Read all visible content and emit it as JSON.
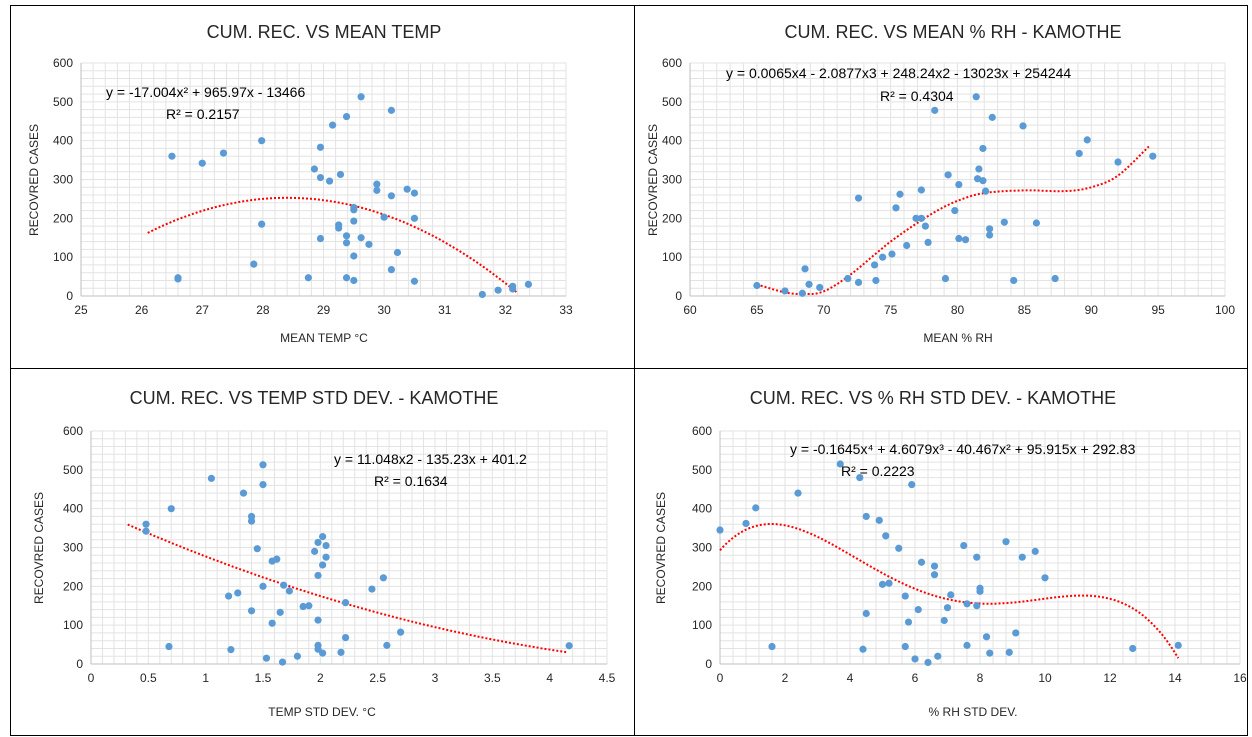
{
  "colors": {
    "point": "#5b9bd5",
    "trend": "#ff0000",
    "border": "#000000"
  },
  "chart_data": [
    {
      "type": "scatter",
      "title": "CUM. REC. VS MEAN TEMP",
      "xlabel": "MEAN TEMP °C",
      "ylabel": "RECOVRED  CASES",
      "xlim": [
        25,
        33
      ],
      "ylim": [
        0,
        600
      ],
      "xticks": [
        25,
        26,
        27,
        28,
        29,
        30,
        31,
        32,
        33
      ],
      "yticks": [
        0,
        100,
        200,
        300,
        400,
        500,
        600
      ],
      "grid": true,
      "trendline": {
        "type": "polynomial",
        "coefficients": [
          -13466,
          965.97,
          -17.004
        ],
        "x_range": [
          26.1,
          32.2
        ],
        "equation": "y = -17.004x² + 965.97x - 13466",
        "r2": "R² = 0.2157"
      },
      "points": [
        {
          "x": 26.5,
          "y": 360
        },
        {
          "x": 26.6,
          "y": 47
        },
        {
          "x": 26.6,
          "y": 44
        },
        {
          "x": 27.0,
          "y": 342
        },
        {
          "x": 27.35,
          "y": 368
        },
        {
          "x": 27.85,
          "y": 82
        },
        {
          "x": 27.98,
          "y": 400
        },
        {
          "x": 27.98,
          "y": 185
        },
        {
          "x": 28.75,
          "y": 47
        },
        {
          "x": 28.85,
          "y": 327
        },
        {
          "x": 28.95,
          "y": 383
        },
        {
          "x": 28.95,
          "y": 305
        },
        {
          "x": 28.95,
          "y": 148
        },
        {
          "x": 29.1,
          "y": 296
        },
        {
          "x": 29.15,
          "y": 440
        },
        {
          "x": 29.25,
          "y": 183
        },
        {
          "x": 29.25,
          "y": 175
        },
        {
          "x": 29.28,
          "y": 313
        },
        {
          "x": 29.38,
          "y": 462
        },
        {
          "x": 29.38,
          "y": 155
        },
        {
          "x": 29.38,
          "y": 137
        },
        {
          "x": 29.38,
          "y": 47
        },
        {
          "x": 29.5,
          "y": 228
        },
        {
          "x": 29.5,
          "y": 222
        },
        {
          "x": 29.5,
          "y": 193
        },
        {
          "x": 29.5,
          "y": 103
        },
        {
          "x": 29.5,
          "y": 40
        },
        {
          "x": 29.62,
          "y": 513
        },
        {
          "x": 29.62,
          "y": 150
        },
        {
          "x": 29.75,
          "y": 133
        },
        {
          "x": 29.88,
          "y": 288
        },
        {
          "x": 29.88,
          "y": 272
        },
        {
          "x": 30.0,
          "y": 203
        },
        {
          "x": 30.12,
          "y": 478
        },
        {
          "x": 30.12,
          "y": 258
        },
        {
          "x": 30.12,
          "y": 68
        },
        {
          "x": 30.22,
          "y": 112
        },
        {
          "x": 30.38,
          "y": 275
        },
        {
          "x": 30.5,
          "y": 265
        },
        {
          "x": 30.5,
          "y": 200
        },
        {
          "x": 30.5,
          "y": 38
        },
        {
          "x": 31.62,
          "y": 4
        },
        {
          "x": 31.88,
          "y": 15
        },
        {
          "x": 32.12,
          "y": 25
        },
        {
          "x": 32.12,
          "y": 18
        },
        {
          "x": 32.38,
          "y": 30
        }
      ]
    },
    {
      "type": "scatter",
      "title": "CUM. REC. VS MEAN % RH - KAMOTHE",
      "xlabel": "MEAN % RH",
      "ylabel": "RECOVRED  CASES",
      "xlim": [
        60,
        100
      ],
      "ylim": [
        0,
        600
      ],
      "xticks": [
        60,
        65,
        70,
        75,
        80,
        85,
        90,
        95,
        100
      ],
      "yticks": [
        0,
        100,
        200,
        300,
        400,
        500,
        600
      ],
      "grid": true,
      "trendline": {
        "type": "smooth",
        "curve": [
          [
            65,
            30
          ],
          [
            67,
            10
          ],
          [
            68.5,
            5
          ],
          [
            70,
            12
          ],
          [
            72,
            55
          ],
          [
            75,
            140
          ],
          [
            78,
            210
          ],
          [
            80,
            245
          ],
          [
            82,
            265
          ],
          [
            85,
            272
          ],
          [
            88,
            270
          ],
          [
            90,
            280
          ],
          [
            92,
            310
          ],
          [
            94.3,
            385
          ]
        ],
        "x_range": [
          65,
          94.3
        ],
        "equation": "y = 0.0065x4 - 2.0877x3 + 248.24x2 - 13023x + 254244",
        "r2": "R² = 0.4304"
      },
      "points": [
        {
          "x": 65.0,
          "y": 27
        },
        {
          "x": 67.1,
          "y": 13
        },
        {
          "x": 68.4,
          "y": 7
        },
        {
          "x": 68.6,
          "y": 70
        },
        {
          "x": 68.9,
          "y": 30
        },
        {
          "x": 69.7,
          "y": 22
        },
        {
          "x": 71.8,
          "y": 45
        },
        {
          "x": 72.6,
          "y": 252
        },
        {
          "x": 72.6,
          "y": 35
        },
        {
          "x": 73.8,
          "y": 80
        },
        {
          "x": 73.9,
          "y": 40
        },
        {
          "x": 74.4,
          "y": 100
        },
        {
          "x": 75.1,
          "y": 108
        },
        {
          "x": 75.4,
          "y": 227
        },
        {
          "x": 75.7,
          "y": 262
        },
        {
          "x": 76.2,
          "y": 130
        },
        {
          "x": 76.9,
          "y": 200
        },
        {
          "x": 77.3,
          "y": 273
        },
        {
          "x": 77.3,
          "y": 200
        },
        {
          "x": 77.6,
          "y": 180
        },
        {
          "x": 77.8,
          "y": 138
        },
        {
          "x": 78.3,
          "y": 478
        },
        {
          "x": 79.1,
          "y": 45
        },
        {
          "x": 79.3,
          "y": 312
        },
        {
          "x": 79.8,
          "y": 220
        },
        {
          "x": 80.1,
          "y": 287
        },
        {
          "x": 80.1,
          "y": 148
        },
        {
          "x": 80.6,
          "y": 145
        },
        {
          "x": 81.4,
          "y": 513
        },
        {
          "x": 81.5,
          "y": 302
        },
        {
          "x": 81.6,
          "y": 327
        },
        {
          "x": 81.9,
          "y": 297
        },
        {
          "x": 81.9,
          "y": 380
        },
        {
          "x": 82.1,
          "y": 270
        },
        {
          "x": 82.4,
          "y": 173
        },
        {
          "x": 82.4,
          "y": 157
        },
        {
          "x": 82.6,
          "y": 460
        },
        {
          "x": 83.5,
          "y": 190
        },
        {
          "x": 84.2,
          "y": 40
        },
        {
          "x": 84.9,
          "y": 438
        },
        {
          "x": 85.9,
          "y": 188
        },
        {
          "x": 87.3,
          "y": 45
        },
        {
          "x": 89.1,
          "y": 367
        },
        {
          "x": 89.7,
          "y": 402
        },
        {
          "x": 92.0,
          "y": 345
        },
        {
          "x": 94.6,
          "y": 360
        }
      ]
    },
    {
      "type": "scatter",
      "title": "CUM. REC. VS TEMP STD DEV. - KAMOTHE",
      "xlabel": "TEMP STD DEV. °C",
      "ylabel": "RECOVRED  CASES",
      "xlim": [
        0,
        4.5
      ],
      "ylim": [
        0,
        600
      ],
      "xticks": [
        0,
        0.5,
        1,
        1.5,
        2,
        2.5,
        3,
        3.5,
        4,
        4.5
      ],
      "xtick_labels": [
        "0",
        "0.5",
        "1",
        "1.5",
        "2",
        "2.5",
        "3",
        "3.5",
        "4",
        "4.5"
      ],
      "yticks": [
        0,
        100,
        200,
        300,
        400,
        500,
        600
      ],
      "grid": true,
      "trendline": {
        "type": "polynomial",
        "coefficients": [
          401.2,
          -135.23,
          11.048
        ],
        "x_range": [
          0.32,
          4.15
        ],
        "equation": "y = 11.048x2 - 135.23x + 401.2",
        "r2": "R² = 0.1634"
      },
      "points": [
        {
          "x": 0.48,
          "y": 360
        },
        {
          "x": 0.48,
          "y": 342
        },
        {
          "x": 0.68,
          "y": 45
        },
        {
          "x": 0.7,
          "y": 400
        },
        {
          "x": 1.05,
          "y": 478
        },
        {
          "x": 1.2,
          "y": 175
        },
        {
          "x": 1.22,
          "y": 37
        },
        {
          "x": 1.28,
          "y": 183
        },
        {
          "x": 1.33,
          "y": 440
        },
        {
          "x": 1.4,
          "y": 380
        },
        {
          "x": 1.4,
          "y": 368
        },
        {
          "x": 1.4,
          "y": 137
        },
        {
          "x": 1.45,
          "y": 297
        },
        {
          "x": 1.5,
          "y": 513
        },
        {
          "x": 1.5,
          "y": 462
        },
        {
          "x": 1.5,
          "y": 200
        },
        {
          "x": 1.53,
          "y": 15
        },
        {
          "x": 1.58,
          "y": 265
        },
        {
          "x": 1.58,
          "y": 105
        },
        {
          "x": 1.62,
          "y": 270
        },
        {
          "x": 1.65,
          "y": 133
        },
        {
          "x": 1.67,
          "y": 5
        },
        {
          "x": 1.68,
          "y": 203
        },
        {
          "x": 1.73,
          "y": 188
        },
        {
          "x": 1.8,
          "y": 20
        },
        {
          "x": 1.85,
          "y": 148
        },
        {
          "x": 1.9,
          "y": 150
        },
        {
          "x": 1.95,
          "y": 290
        },
        {
          "x": 1.98,
          "y": 313
        },
        {
          "x": 1.98,
          "y": 228
        },
        {
          "x": 1.98,
          "y": 113
        },
        {
          "x": 1.98,
          "y": 48
        },
        {
          "x": 1.98,
          "y": 38
        },
        {
          "x": 2.02,
          "y": 328
        },
        {
          "x": 2.02,
          "y": 255
        },
        {
          "x": 2.02,
          "y": 28
        },
        {
          "x": 2.05,
          "y": 305
        },
        {
          "x": 2.05,
          "y": 275
        },
        {
          "x": 2.18,
          "y": 30
        },
        {
          "x": 2.22,
          "y": 158
        },
        {
          "x": 2.22,
          "y": 68
        },
        {
          "x": 2.45,
          "y": 193
        },
        {
          "x": 2.55,
          "y": 222
        },
        {
          "x": 2.58,
          "y": 48
        },
        {
          "x": 2.7,
          "y": 82
        },
        {
          "x": 4.17,
          "y": 47
        }
      ]
    },
    {
      "type": "scatter",
      "title": "CUM. REC. VS % RH STD DEV. - KAMOTHE",
      "xlabel": "% RH STD DEV.",
      "ylabel": "RECOVRED CASES",
      "xlim": [
        0,
        16
      ],
      "ylim": [
        0,
        600
      ],
      "xticks": [
        0,
        2,
        4,
        6,
        8,
        10,
        12,
        14,
        16
      ],
      "yticks": [
        0,
        100,
        200,
        300,
        400,
        500,
        600
      ],
      "grid": true,
      "trendline": {
        "type": "polynomial",
        "coefficients": [
          292.83,
          95.915,
          -40.467,
          4.6079,
          -0.1645
        ],
        "x_range": [
          0,
          14.1
        ],
        "equation": "y = -0.1645x⁴ + 4.6079x³ - 40.467x² + 95.915x + 292.83",
        "r2": "R² = 0.2223"
      },
      "points": [
        {
          "x": 0.0,
          "y": 345
        },
        {
          "x": 0.8,
          "y": 362
        },
        {
          "x": 1.1,
          "y": 402
        },
        {
          "x": 1.6,
          "y": 45
        },
        {
          "x": 2.4,
          "y": 440
        },
        {
          "x": 3.7,
          "y": 515
        },
        {
          "x": 4.3,
          "y": 480
        },
        {
          "x": 4.4,
          "y": 38
        },
        {
          "x": 4.5,
          "y": 130
        },
        {
          "x": 4.5,
          "y": 380
        },
        {
          "x": 4.9,
          "y": 370
        },
        {
          "x": 5.0,
          "y": 205
        },
        {
          "x": 5.1,
          "y": 330
        },
        {
          "x": 5.2,
          "y": 208
        },
        {
          "x": 5.5,
          "y": 298
        },
        {
          "x": 5.7,
          "y": 175
        },
        {
          "x": 5.7,
          "y": 45
        },
        {
          "x": 5.8,
          "y": 108
        },
        {
          "x": 5.9,
          "y": 462
        },
        {
          "x": 6.0,
          "y": 13
        },
        {
          "x": 6.1,
          "y": 140
        },
        {
          "x": 6.2,
          "y": 262
        },
        {
          "x": 6.4,
          "y": 4
        },
        {
          "x": 6.6,
          "y": 252
        },
        {
          "x": 6.6,
          "y": 230
        },
        {
          "x": 6.7,
          "y": 20
        },
        {
          "x": 6.9,
          "y": 112
        },
        {
          "x": 7.0,
          "y": 145
        },
        {
          "x": 7.1,
          "y": 178
        },
        {
          "x": 7.5,
          "y": 305
        },
        {
          "x": 7.6,
          "y": 155
        },
        {
          "x": 7.6,
          "y": 48
        },
        {
          "x": 7.9,
          "y": 150
        },
        {
          "x": 7.9,
          "y": 275
        },
        {
          "x": 8.0,
          "y": 187
        },
        {
          "x": 8.0,
          "y": 195
        },
        {
          "x": 8.2,
          "y": 70
        },
        {
          "x": 8.3,
          "y": 28
        },
        {
          "x": 8.8,
          "y": 315
        },
        {
          "x": 8.9,
          "y": 30
        },
        {
          "x": 9.1,
          "y": 80
        },
        {
          "x": 9.3,
          "y": 275
        },
        {
          "x": 9.7,
          "y": 290
        },
        {
          "x": 10.0,
          "y": 222
        },
        {
          "x": 12.7,
          "y": 40
        },
        {
          "x": 14.1,
          "y": 48
        }
      ]
    }
  ]
}
